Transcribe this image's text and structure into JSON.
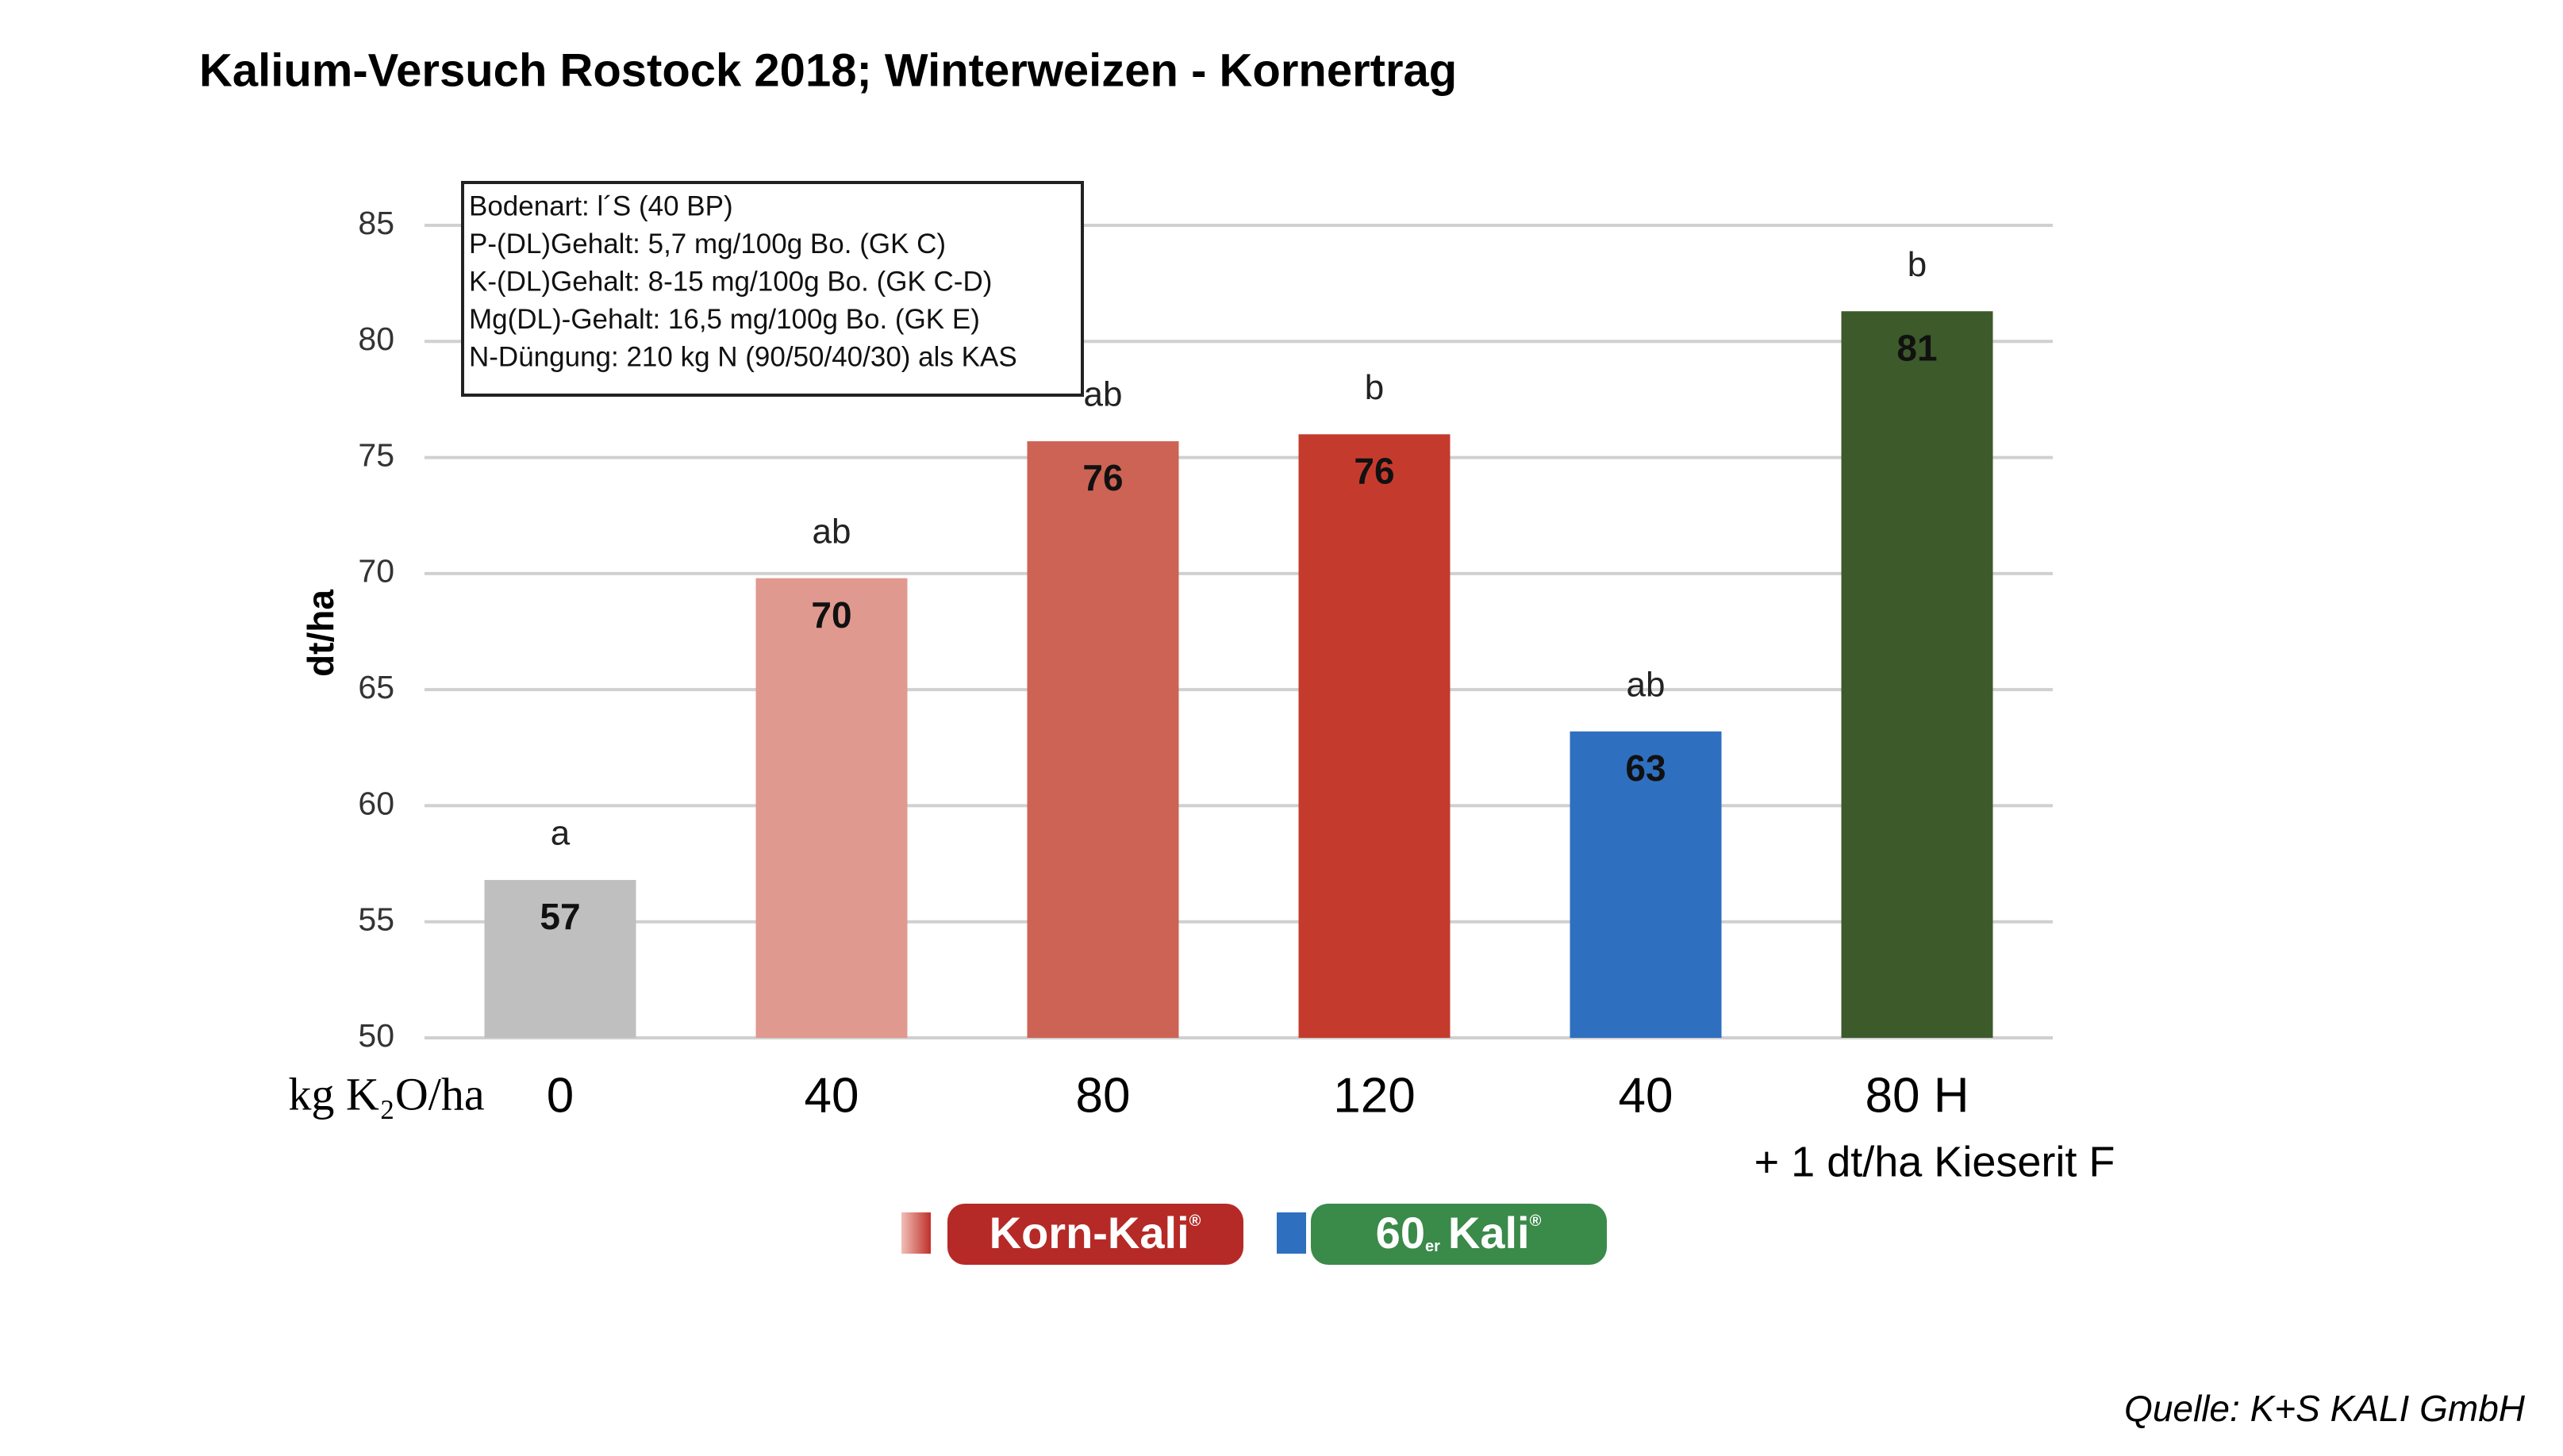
{
  "chart_data": {
    "type": "bar",
    "title": "Kalium-Versuch Rostock 2018; Winterweizen - Kornertrag",
    "y_label": "dt/ha",
    "x_label": "kg K₂O/ha",
    "categories": [
      "0",
      "40",
      "80",
      "120",
      "40",
      "80 H"
    ],
    "category_note": "+ 1 dt/ha Kieserit  F",
    "values": [
      56.8,
      69.8,
      75.7,
      76.0,
      63.2,
      81.3
    ],
    "value_labels": [
      "57",
      "70",
      "76",
      "76",
      "63",
      "81"
    ],
    "letters": [
      "a",
      "ab",
      "ab",
      "b",
      "ab",
      "b"
    ],
    "colors": [
      "#bfbfbf",
      "#e0998f",
      "#cd6354",
      "#c43b2d",
      "#2e6fc0",
      "#3d5a2a"
    ],
    "ylim": [
      50,
      85
    ],
    "yticks": [
      50,
      55,
      60,
      65,
      70,
      75,
      80,
      85
    ],
    "grid": true,
    "info_box": [
      "Bodenart: l´S (40 BP)",
      "P-(DL)Gehalt:  5,7 mg/100g Bo. (GK C)",
      "K-(DL)Gehalt: 8-15 mg/100g Bo. (GK C-D)",
      "Mg(DL)-Gehalt: 16,5 mg/100g Bo. (GK E)",
      "N-Düngung: 210 kg N (90/50/40/30) als KAS"
    ],
    "legend": [
      {
        "name": "Korn-Kali",
        "mark": "®",
        "swatch": [
          "#f0c0b8",
          "#c0302a"
        ],
        "badge": "#b52a27"
      },
      {
        "prefix": "60",
        "suffix": "er",
        "name": "Kali",
        "mark": "®",
        "swatch": [
          "#2e6fc0",
          "#2e6fc0"
        ],
        "badge": "#3a8a4a"
      }
    ],
    "source": "Quelle: K+S KALI GmbH"
  }
}
